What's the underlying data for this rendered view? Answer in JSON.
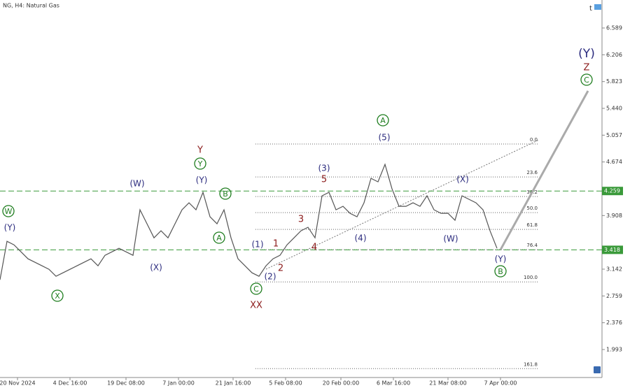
{
  "chart_data": {
    "type": "line",
    "title": "NG, H4: Natural Gas",
    "xlim": [
      0,
      86
    ],
    "ylim": [
      1.593,
      6.989
    ],
    "xticks": [
      {
        "value": 2.5,
        "label": "20 Nov 2024"
      },
      {
        "value": 10,
        "label": "4 Dec 16:00"
      },
      {
        "value": 18,
        "label": "19 Dec 08:00"
      },
      {
        "value": 25.5,
        "label": "7 Jan 00:00"
      },
      {
        "value": 33.3,
        "label": "21 Jan 16:00"
      },
      {
        "value": 40.8,
        "label": "5 Feb 08:00"
      },
      {
        "value": 48.7,
        "label": "20 Feb 00:00"
      },
      {
        "value": 56.2,
        "label": "6 Mar 16:00"
      },
      {
        "value": 64,
        "label": "21 Mar 08:00"
      },
      {
        "value": 71.5,
        "label": "7 Apr 00:00"
      }
    ],
    "yticks": [
      6.589,
      6.206,
      5.823,
      {
        "value": 5.44,
        "label": "5.440"
      },
      5.057,
      4.674,
      3.908,
      3.142,
      2.759,
      2.376,
      1.993
    ],
    "series": [
      {
        "color": "#555555",
        "x": [
          0,
          1,
          2,
          3,
          4,
          5,
          6,
          7,
          8,
          9,
          10,
          11,
          12,
          13,
          14,
          15,
          16,
          17,
          18,
          19,
          20,
          21,
          22,
          23,
          24,
          25,
          26,
          27,
          28,
          29,
          30,
          31,
          32,
          33,
          34,
          35,
          36,
          37,
          38,
          39,
          40,
          41,
          42,
          43,
          44,
          45,
          46,
          47,
          48,
          49,
          50,
          51,
          52,
          53,
          54,
          55,
          56,
          57,
          58,
          59,
          60,
          61,
          62,
          63,
          64,
          65,
          66,
          67,
          68,
          69,
          70,
          71
        ],
        "values": [
          2.99,
          3.54,
          3.49,
          3.39,
          3.29,
          3.24,
          3.19,
          3.14,
          3.04,
          3.09,
          3.14,
          3.19,
          3.24,
          3.29,
          3.19,
          3.34,
          3.39,
          3.44,
          3.39,
          3.34,
          3.99,
          3.79,
          3.59,
          3.69,
          3.59,
          3.79,
          3.99,
          4.09,
          3.99,
          4.24,
          3.89,
          3.79,
          3.99,
          3.59,
          3.29,
          3.19,
          3.09,
          3.04,
          3.19,
          3.29,
          3.34,
          3.49,
          3.59,
          3.69,
          3.74,
          3.59,
          4.19,
          4.24,
          3.99,
          4.04,
          3.94,
          3.89,
          4.09,
          4.44,
          4.39,
          4.64,
          4.29,
          4.04,
          4.04,
          4.09,
          4.04,
          4.19,
          3.99,
          3.94,
          3.94,
          3.84,
          4.19,
          4.14,
          4.09,
          3.99,
          3.69,
          3.44
        ]
      },
      {
        "color": "#aaaaaa",
        "x": [
          71.5,
          84
        ],
        "values": [
          3.42,
          5.69
        ]
      }
    ],
    "price_labels": [
      {
        "value": 4.259,
        "label": "4.259"
      },
      {
        "value": 3.418,
        "label": "3.418"
      }
    ],
    "price_label_color": "#3a9a3a",
    "fib": {
      "labels": [
        "0.0",
        "23.6",
        "38.2",
        "50.0",
        "61.8",
        "76.4",
        "100.0",
        "161.8"
      ],
      "prices": [
        4.93,
        4.46,
        4.18,
        3.95,
        3.71,
        3.42,
        2.96,
        1.72
      ]
    },
    "annotations": [
      {
        "text": "W",
        "color": "#1e7d1e",
        "circled": true
      },
      {
        "text": "(Y)",
        "color": "#2b2b7e",
        "circled": false
      },
      {
        "text": "X",
        "color": "#1e7d1e",
        "circled": true
      },
      {
        "text": "(W)",
        "color": "#2b2b7e",
        "circled": false
      },
      {
        "text": "(X)",
        "color": "#2b2b7e",
        "circled": false
      },
      {
        "text": "Y",
        "color": "#8b1a1a",
        "circled": false
      },
      {
        "text": "Y",
        "color": "#1e7d1e",
        "circled": true
      },
      {
        "text": "(Y)",
        "color": "#2b2b7e",
        "circled": false
      },
      {
        "text": "B",
        "color": "#1e7d1e",
        "circled": true
      },
      {
        "text": "A",
        "color": "#1e7d1e",
        "circled": true
      },
      {
        "text": "(1)",
        "color": "#2b2b7e",
        "circled": false
      },
      {
        "text": "1",
        "color": "#8b1a1a",
        "circled": false
      },
      {
        "text": "2",
        "color": "#8b1a1a",
        "circled": false
      },
      {
        "text": "(2)",
        "color": "#2b2b7e",
        "circled": false
      },
      {
        "text": "C",
        "color": "#1e7d1e",
        "circled": true
      },
      {
        "text": "XX",
        "color": "#8b1a1a",
        "circled": false
      },
      {
        "text": "3",
        "color": "#8b1a1a",
        "circled": false
      },
      {
        "text": "4",
        "color": "#8b1a1a",
        "circled": false
      },
      {
        "text": "(3)",
        "color": "#2b2b7e",
        "circled": false
      },
      {
        "text": "5",
        "color": "#8b1a1a",
        "circled": false
      },
      {
        "text": "(4)",
        "color": "#2b2b7e",
        "circled": false
      },
      {
        "text": "A",
        "color": "#1e7d1e",
        "circled": true
      },
      {
        "text": "(5)",
        "color": "#2b2b7e",
        "circled": false
      },
      {
        "text": "(X)",
        "color": "#2b2b7e",
        "circled": false
      },
      {
        "text": "(W)",
        "color": "#2b2b7e",
        "circled": false
      },
      {
        "text": "(Y)",
        "color": "#2b2b7e",
        "circled": false
      },
      {
        "text": "B",
        "color": "#1e7d1e",
        "circled": true
      },
      {
        "text": "(Y)",
        "color": "#2b2b7e",
        "circled": false
      },
      {
        "text": "Z",
        "color": "#8b1a1a",
        "circled": false
      },
      {
        "text": "C",
        "color": "#1e7d1e",
        "circled": true
      }
    ]
  }
}
